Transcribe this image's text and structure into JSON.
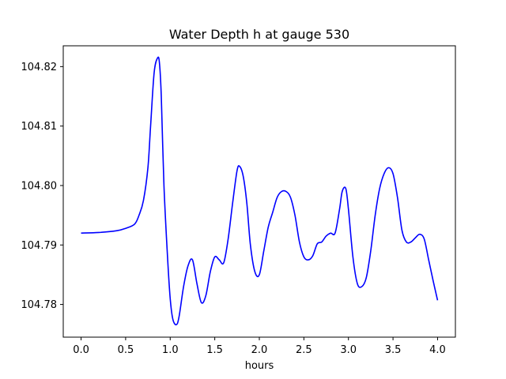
{
  "chart_data": {
    "type": "line",
    "title": "Water Depth h at gauge 530",
    "xlabel": "hours",
    "ylabel": "",
    "xlim": [
      -0.2,
      4.2
    ],
    "ylim": [
      104.7745,
      104.8235
    ],
    "x_ticks": [
      0.0,
      0.5,
      1.0,
      1.5,
      2.0,
      2.5,
      3.0,
      3.5,
      4.0
    ],
    "x_tick_labels": [
      "0.0",
      "0.5",
      "1.0",
      "1.5",
      "2.0",
      "2.5",
      "3.0",
      "3.5",
      "4.0"
    ],
    "y_ticks": [
      104.78,
      104.79,
      104.8,
      104.81,
      104.82
    ],
    "y_tick_labels": [
      "104.78",
      "104.79",
      "104.80",
      "104.81",
      "104.82"
    ],
    "grid": false,
    "series": [
      {
        "color": "#0000ff",
        "x": [
          0.0,
          0.2,
          0.4,
          0.5,
          0.6,
          0.65,
          0.7,
          0.75,
          0.78,
          0.82,
          0.86,
          0.88,
          0.9,
          0.93,
          0.97,
          1.0,
          1.03,
          1.07,
          1.1,
          1.15,
          1.2,
          1.25,
          1.3,
          1.35,
          1.4,
          1.45,
          1.5,
          1.55,
          1.6,
          1.65,
          1.7,
          1.75,
          1.78,
          1.82,
          1.86,
          1.9,
          1.95,
          2.0,
          2.05,
          2.1,
          2.15,
          2.2,
          2.25,
          2.3,
          2.35,
          2.4,
          2.45,
          2.5,
          2.55,
          2.6,
          2.65,
          2.7,
          2.75,
          2.8,
          2.85,
          2.9,
          2.93,
          2.97,
          3.0,
          3.05,
          3.1,
          3.15,
          3.2,
          3.25,
          3.3,
          3.35,
          3.4,
          3.45,
          3.5,
          3.55,
          3.6,
          3.65,
          3.7,
          3.75,
          3.8,
          3.85,
          3.9,
          3.95,
          4.0
        ],
        "y": [
          104.792,
          104.7921,
          104.7924,
          104.7928,
          104.7935,
          104.795,
          104.7975,
          104.803,
          104.81,
          104.819,
          104.8215,
          104.8205,
          104.815,
          104.8,
          104.788,
          104.781,
          104.7775,
          104.7766,
          104.778,
          104.783,
          104.7865,
          104.7875,
          104.7835,
          104.7803,
          104.7815,
          104.7855,
          104.788,
          104.7875,
          104.787,
          104.791,
          104.797,
          104.8025,
          104.8032,
          104.8015,
          104.797,
          104.79,
          104.7855,
          104.785,
          104.789,
          104.793,
          104.7955,
          104.798,
          104.799,
          104.799,
          104.798,
          104.795,
          104.7905,
          104.788,
          104.7875,
          104.7882,
          104.7902,
          104.7905,
          104.7915,
          104.792,
          104.792,
          104.796,
          104.799,
          104.7995,
          104.796,
          104.788,
          104.7835,
          104.783,
          104.7845,
          104.789,
          104.795,
          104.7995,
          104.802,
          104.803,
          104.802,
          104.798,
          104.7925,
          104.7905,
          104.7905,
          104.7912,
          104.7918,
          104.791,
          104.7875,
          104.784,
          104.7807
        ]
      }
    ]
  }
}
